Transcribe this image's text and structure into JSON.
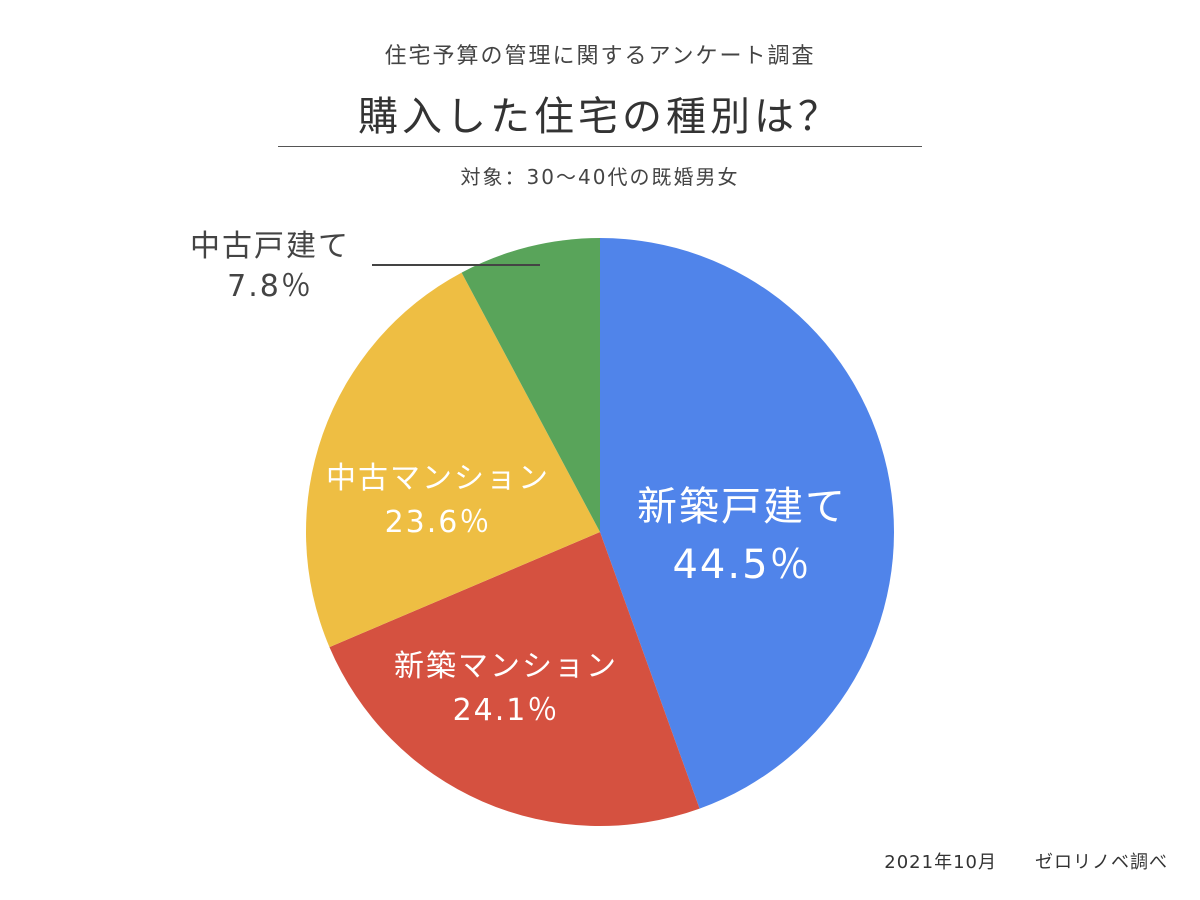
{
  "survey_title": "住宅予算の管理に関するアンケート調査",
  "footer": {
    "date": "2021年10月",
    "source": "ゼロリノベ調べ"
  },
  "chart_data": {
    "type": "pie",
    "title": "購入した住宅の種別は？",
    "subtitle": "対象：30〜40代の既婚男女",
    "slices": [
      {
        "label": "新築戸建て",
        "value": 44.5,
        "value_label": "44.5％",
        "color": "#5084EA"
      },
      {
        "label": "新築マンション",
        "value": 24.1,
        "value_label": "24.1％",
        "color": "#D55140"
      },
      {
        "label": "中古マンション",
        "value": 23.6,
        "value_label": "23.6％",
        "color": "#EEBE43"
      },
      {
        "label": "中古戸建て",
        "value": 7.8,
        "value_label": "7.8％",
        "color": "#59A45A"
      }
    ],
    "start_angle": "12 o'clock",
    "direction": "clockwise"
  }
}
